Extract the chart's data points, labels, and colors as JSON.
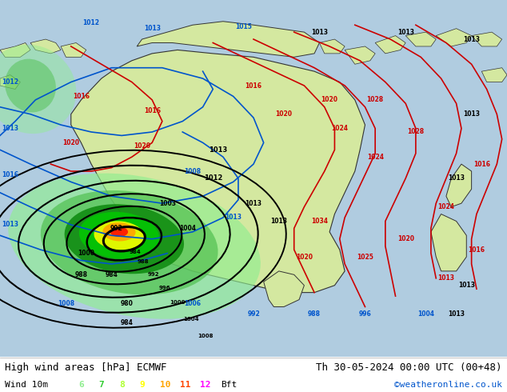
{
  "title_left": "High wind areas [hPa] ECMWF",
  "title_right": "Th 30-05-2024 00:00 UTC (00+48)",
  "subtitle_left": "Wind 10m",
  "subtitle_right": "©weatheronline.co.uk",
  "legend_labels": [
    "6",
    "7",
    "8",
    "9",
    "10",
    "11",
    "12",
    "Bft"
  ],
  "legend_colors": [
    "#90ee90",
    "#32cd32",
    "#adff2f",
    "#ffff00",
    "#ffa500",
    "#ff4500",
    "#ff00ff",
    "#000000"
  ],
  "bg_color": "#c8e0f0",
  "ocean_color": "#b0cce0",
  "land_color": "#d4e8a0",
  "footer_bg": "#ffffff",
  "font_color": "#000000",
  "font_size_title": 9,
  "font_size_footer": 8,
  "wind6_color": "#90ee90",
  "wind7_color": "#50c050",
  "wind8_color": "#008000",
  "wind9_color": "#00cc00",
  "wind10_color": "#ffff00",
  "wind11_color": "#ffa500",
  "wind12_color": "#ff2000",
  "isobar_black": "#000000",
  "isobar_blue": "#0055cc",
  "isobar_red": "#cc0000"
}
